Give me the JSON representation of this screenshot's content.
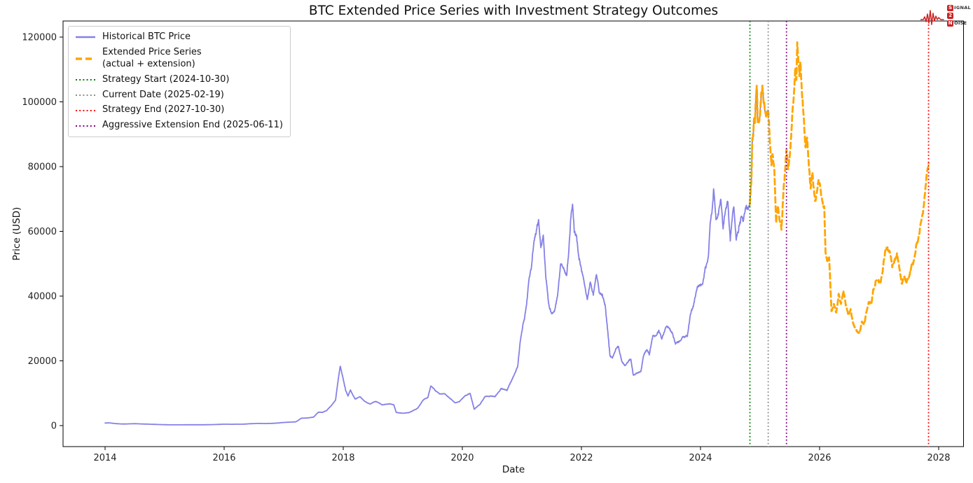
{
  "logo": {
    "line1_badge": "S",
    "line1_rest": "IGNAL",
    "line2_badge": "2",
    "line3_badge": "N",
    "line3_rest": "OISE",
    "color": "#cc2222"
  },
  "legend": {
    "items": [
      {
        "label": "Historical BTC Price",
        "style": "solid",
        "color": "#8581e6"
      },
      {
        "label": "Extended Price Series\n(actual + extension)",
        "style": "dashed",
        "color": "#FFA500"
      },
      {
        "label": "Strategy Start (2024-10-30)",
        "style": "dotted",
        "color": "#008000"
      },
      {
        "label": "Current Date (2025-02-19)",
        "style": "dotted",
        "color": "#8c8c8c"
      },
      {
        "label": "Strategy End (2027-10-30)",
        "style": "dotted",
        "color": "#ff0000"
      },
      {
        "label": "Aggressive Extension End (2025-06-11)",
        "style": "dotted",
        "color": "#800080"
      }
    ]
  },
  "chart_data": {
    "type": "line",
    "title": "BTC Extended Price Series with Investment Strategy Outcomes",
    "xlabel": "Date",
    "ylabel": "Price (USD)",
    "x_ticks": [
      2014,
      2016,
      2018,
      2020,
      2022,
      2024,
      2026,
      2028
    ],
    "y_ticks": [
      0,
      20000,
      40000,
      60000,
      80000,
      100000,
      120000
    ],
    "x_range": [
      2013.29,
      2028.41
    ],
    "y_range": [
      -6500,
      125000
    ],
    "grid": false,
    "legend_position": "upper-left",
    "series": [
      {
        "name": "Historical BTC Price",
        "color": "#8581e6",
        "style": "solid",
        "width": 1.8,
        "t_range": [
          2014.0,
          2025.137
        ]
      },
      {
        "name": "Extended Price Series (actual + extension)",
        "color": "#FFA500",
        "style": "dashed",
        "width": 2.8,
        "t_range": [
          2024.83,
          2027.83
        ]
      }
    ],
    "events": [
      {
        "label": "Strategy Start (2024-10-30)",
        "date": "2024-10-30",
        "t": 2024.83,
        "color": "#008000"
      },
      {
        "label": "Current Date (2025-02-19)",
        "date": "2025-02-19",
        "t": 2025.137,
        "color": "#8c8c8c"
      },
      {
        "label": "Strategy End (2027-10-30)",
        "date": "2027-10-30",
        "t": 2027.83,
        "color": "#ff0000"
      },
      {
        "label": "Aggressive Extension End (2025-06-11)",
        "date": "2025-06-11",
        "t": 2025.444,
        "color": "#800080"
      }
    ],
    "price_anchors": [
      [
        2014.0,
        800
      ],
      [
        2014.08,
        830
      ],
      [
        2014.17,
        620
      ],
      [
        2014.3,
        480
      ],
      [
        2014.5,
        590
      ],
      [
        2014.7,
        480
      ],
      [
        2014.85,
        370
      ],
      [
        2015.0,
        290
      ],
      [
        2015.1,
        230
      ],
      [
        2015.3,
        245
      ],
      [
        2015.5,
        260
      ],
      [
        2015.7,
        270
      ],
      [
        2015.85,
        330
      ],
      [
        2016.0,
        430
      ],
      [
        2016.15,
        415
      ],
      [
        2016.3,
        425
      ],
      [
        2016.45,
        580
      ],
      [
        2016.55,
        660
      ],
      [
        2016.7,
        640
      ],
      [
        2016.85,
        720
      ],
      [
        2017.0,
        980
      ],
      [
        2017.1,
        1050
      ],
      [
        2017.2,
        1150
      ],
      [
        2017.3,
        2300
      ],
      [
        2017.42,
        2450
      ],
      [
        2017.5,
        2600
      ],
      [
        2017.58,
        4200
      ],
      [
        2017.65,
        4150
      ],
      [
        2017.72,
        4700
      ],
      [
        2017.8,
        6200
      ],
      [
        2017.87,
        7800
      ],
      [
        2017.92,
        15000
      ],
      [
        2017.95,
        18700
      ],
      [
        2018.0,
        14500
      ],
      [
        2018.04,
        11200
      ],
      [
        2018.08,
        9300
      ],
      [
        2018.12,
        11300
      ],
      [
        2018.2,
        8500
      ],
      [
        2018.28,
        9200
      ],
      [
        2018.35,
        7600
      ],
      [
        2018.45,
        6600
      ],
      [
        2018.55,
        7400
      ],
      [
        2018.65,
        6400
      ],
      [
        2018.75,
        6500
      ],
      [
        2018.85,
        6400
      ],
      [
        2018.89,
        4100
      ],
      [
        2019.0,
        3700
      ],
      [
        2019.1,
        3850
      ],
      [
        2019.25,
        5200
      ],
      [
        2019.35,
        7900
      ],
      [
        2019.42,
        8800
      ],
      [
        2019.47,
        12300
      ],
      [
        2019.55,
        10500
      ],
      [
        2019.62,
        9800
      ],
      [
        2019.7,
        10200
      ],
      [
        2019.8,
        8300
      ],
      [
        2019.88,
        7000
      ],
      [
        2019.95,
        7400
      ],
      [
        2020.05,
        9400
      ],
      [
        2020.13,
        10200
      ],
      [
        2020.2,
        5100
      ],
      [
        2020.3,
        6900
      ],
      [
        2020.38,
        9100
      ],
      [
        2020.5,
        9300
      ],
      [
        2020.55,
        9200
      ],
      [
        2020.65,
        11500
      ],
      [
        2020.75,
        10700
      ],
      [
        2020.82,
        13500
      ],
      [
        2020.88,
        16500
      ],
      [
        2020.93,
        19000
      ],
      [
        2020.97,
        26000
      ],
      [
        2021.0,
        29500
      ],
      [
        2021.04,
        33000
      ],
      [
        2021.08,
        38000
      ],
      [
        2021.12,
        46500
      ],
      [
        2021.16,
        49000
      ],
      [
        2021.2,
        57500
      ],
      [
        2021.24,
        59000
      ],
      [
        2021.28,
        63000
      ],
      [
        2021.32,
        54000
      ],
      [
        2021.36,
        57000
      ],
      [
        2021.4,
        45000
      ],
      [
        2021.45,
        36500
      ],
      [
        2021.5,
        33800
      ],
      [
        2021.55,
        34500
      ],
      [
        2021.6,
        39500
      ],
      [
        2021.65,
        47500
      ],
      [
        2021.7,
        47000
      ],
      [
        2021.75,
        44500
      ],
      [
        2021.78,
        50000
      ],
      [
        2021.82,
        61500
      ],
      [
        2021.85,
        66800
      ],
      [
        2021.88,
        58000
      ],
      [
        2021.92,
        57000
      ],
      [
        2021.96,
        50500
      ],
      [
        2022.0,
        47000
      ],
      [
        2022.05,
        42500
      ],
      [
        2022.1,
        38500
      ],
      [
        2022.15,
        43500
      ],
      [
        2022.2,
        40000
      ],
      [
        2022.25,
        45800
      ],
      [
        2022.3,
        40500
      ],
      [
        2022.35,
        39000
      ],
      [
        2022.4,
        36000
      ],
      [
        2022.44,
        29500
      ],
      [
        2022.48,
        21000
      ],
      [
        2022.52,
        20500
      ],
      [
        2022.58,
        23500
      ],
      [
        2022.62,
        24000
      ],
      [
        2022.68,
        20000
      ],
      [
        2022.73,
        19200
      ],
      [
        2022.78,
        20000
      ],
      [
        2022.83,
        20500
      ],
      [
        2022.87,
        16000
      ],
      [
        2022.92,
        16500
      ],
      [
        2023.0,
        16800
      ],
      [
        2023.04,
        21000
      ],
      [
        2023.1,
        23500
      ],
      [
        2023.14,
        22000
      ],
      [
        2023.2,
        28200
      ],
      [
        2023.25,
        28000
      ],
      [
        2023.3,
        29500
      ],
      [
        2023.35,
        27200
      ],
      [
        2023.42,
        30200
      ],
      [
        2023.48,
        30500
      ],
      [
        2023.53,
        29200
      ],
      [
        2023.58,
        26200
      ],
      [
        2023.65,
        26000
      ],
      [
        2023.72,
        27800
      ],
      [
        2023.78,
        27500
      ],
      [
        2023.83,
        34500
      ],
      [
        2023.88,
        37000
      ],
      [
        2023.93,
        42500
      ],
      [
        2023.97,
        43800
      ],
      [
        2024.03,
        42800
      ],
      [
        2024.08,
        47500
      ],
      [
        2024.13,
        52000
      ],
      [
        2024.16,
        61500
      ],
      [
        2024.2,
        67500
      ],
      [
        2024.22,
        72800
      ],
      [
        2024.26,
        64500
      ],
      [
        2024.3,
        66000
      ],
      [
        2024.34,
        70500
      ],
      [
        2024.38,
        61500
      ],
      [
        2024.42,
        66500
      ],
      [
        2024.46,
        68500
      ],
      [
        2024.5,
        56800
      ],
      [
        2024.54,
        65000
      ],
      [
        2024.56,
        68000
      ],
      [
        2024.6,
        58500
      ],
      [
        2024.64,
        60500
      ],
      [
        2024.68,
        64500
      ],
      [
        2024.72,
        62800
      ],
      [
        2024.76,
        68200
      ],
      [
        2024.8,
        66500
      ],
      [
        2024.83,
        69500
      ],
      [
        2024.855,
        76000
      ],
      [
        2024.87,
        89500
      ],
      [
        2024.885,
        91000
      ],
      [
        2024.9,
        97500
      ],
      [
        2024.915,
        95000
      ],
      [
        2024.93,
        101500
      ],
      [
        2024.945,
        106800
      ],
      [
        2024.96,
        95500
      ],
      [
        2024.975,
        94500
      ],
      [
        2025.0,
        96500
      ],
      [
        2025.02,
        102500
      ],
      [
        2025.04,
        104800
      ],
      [
        2025.06,
        101000
      ],
      [
        2025.08,
        97200
      ],
      [
        2025.1,
        96800
      ],
      [
        2025.12,
        95800
      ],
      [
        2025.137,
        96500
      ],
      [
        2025.16,
        88000
      ],
      [
        2025.19,
        80500
      ],
      [
        2025.21,
        84500
      ],
      [
        2025.24,
        78500
      ],
      [
        2025.27,
        62500
      ],
      [
        2025.3,
        67500
      ],
      [
        2025.33,
        63500
      ],
      [
        2025.36,
        61500
      ],
      [
        2025.39,
        72500
      ],
      [
        2025.42,
        79000
      ],
      [
        2025.444,
        86500
      ],
      [
        2025.47,
        80500
      ],
      [
        2025.5,
        84500
      ],
      [
        2025.54,
        97500
      ],
      [
        2025.57,
        105500
      ],
      [
        2025.59,
        112500
      ],
      [
        2025.61,
        107500
      ],
      [
        2025.625,
        118800
      ],
      [
        2025.64,
        113500
      ],
      [
        2025.66,
        108000
      ],
      [
        2025.68,
        110500
      ],
      [
        2025.71,
        101500
      ],
      [
        2025.74,
        93500
      ],
      [
        2025.76,
        85500
      ],
      [
        2025.79,
        88500
      ],
      [
        2025.82,
        80500
      ],
      [
        2025.85,
        73500
      ],
      [
        2025.88,
        78000
      ],
      [
        2025.9,
        74500
      ],
      [
        2025.93,
        69500
      ],
      [
        2025.96,
        74500
      ],
      [
        2025.99,
        77500
      ],
      [
        2026.02,
        74000
      ],
      [
        2026.05,
        69500
      ],
      [
        2026.08,
        66500
      ],
      [
        2026.1,
        53500
      ],
      [
        2026.13,
        50500
      ],
      [
        2026.16,
        51500
      ],
      [
        2026.2,
        35500
      ],
      [
        2026.24,
        37500
      ],
      [
        2026.28,
        35000
      ],
      [
        2026.32,
        40500
      ],
      [
        2026.36,
        38000
      ],
      [
        2026.4,
        41500
      ],
      [
        2026.44,
        36500
      ],
      [
        2026.48,
        33800
      ],
      [
        2026.52,
        35500
      ],
      [
        2026.56,
        31800
      ],
      [
        2026.6,
        29800
      ],
      [
        2026.64,
        28800
      ],
      [
        2026.67,
        28300
      ],
      [
        2026.71,
        31500
      ],
      [
        2026.75,
        30200
      ],
      [
        2026.79,
        33800
      ],
      [
        2026.83,
        36500
      ],
      [
        2026.87,
        35800
      ],
      [
        2026.9,
        40500
      ],
      [
        2026.94,
        43500
      ],
      [
        2026.98,
        44800
      ],
      [
        2027.02,
        43200
      ],
      [
        2027.06,
        46800
      ],
      [
        2027.1,
        52800
      ],
      [
        2027.14,
        53500
      ],
      [
        2027.18,
        51800
      ],
      [
        2027.22,
        48200
      ],
      [
        2027.26,
        50800
      ],
      [
        2027.3,
        52500
      ],
      [
        2027.34,
        49500
      ],
      [
        2027.38,
        44800
      ],
      [
        2027.42,
        46800
      ],
      [
        2027.46,
        44500
      ],
      [
        2027.5,
        45500
      ],
      [
        2027.54,
        48500
      ],
      [
        2027.58,
        50500
      ],
      [
        2027.62,
        54500
      ],
      [
        2027.66,
        57500
      ],
      [
        2027.7,
        61500
      ],
      [
        2027.74,
        65500
      ],
      [
        2027.77,
        70500
      ],
      [
        2027.8,
        76000
      ],
      [
        2027.83,
        79800
      ]
    ]
  }
}
